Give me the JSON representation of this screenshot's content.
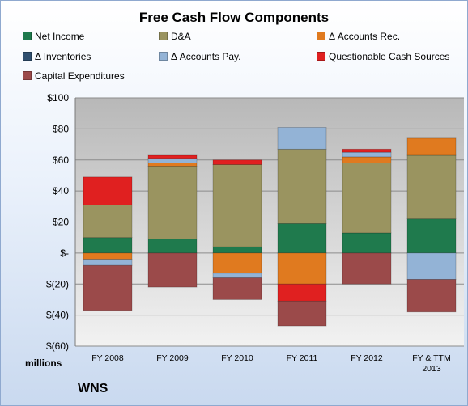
{
  "chart_data": {
    "type": "bar",
    "stacked": true,
    "title": "Free Cash Flow Components",
    "unit_label": "millions",
    "company": "WNS",
    "categories": [
      "FY 2008",
      "FY 2009",
      "FY 2010",
      "FY 2011",
      "FY 2012",
      "FY & TTM 2013"
    ],
    "ylim": [
      -60,
      100
    ],
    "y_ticks": [
      100,
      80,
      60,
      40,
      20,
      0,
      -20,
      -40,
      -60
    ],
    "y_tick_labels": [
      "$100",
      "$80",
      "$60",
      "$40",
      "$20",
      "$-",
      "$(20)",
      "$(40)",
      "$(60)"
    ],
    "grid": true,
    "legend_position": "top",
    "series": [
      {
        "name": "Net Income",
        "color": "#1f7a4d",
        "values": [
          10,
          9,
          4,
          19,
          13,
          22
        ]
      },
      {
        "name": "D&A",
        "color": "#9a9460",
        "values": [
          21,
          47,
          53,
          48,
          45,
          41
        ]
      },
      {
        "name": "Δ Accounts Rec.",
        "color": "#e07a1f",
        "values": [
          -4,
          2,
          -13,
          -20,
          4,
          11
        ]
      },
      {
        "name": "Δ Inventories",
        "color": "#2f4f6f",
        "values": [
          0,
          0,
          0,
          0,
          0,
          0
        ]
      },
      {
        "name": "Δ Accounts Pay.",
        "color": "#93b3d6",
        "values": [
          -4,
          3,
          -3,
          14,
          3,
          -17
        ]
      },
      {
        "name": "Questionable Cash Sources",
        "color": "#e02020",
        "values": [
          18,
          2,
          3,
          -11,
          2,
          0
        ]
      },
      {
        "name": "Capital Expenditures",
        "color": "#9b4a4a",
        "values": [
          -29,
          -22,
          -14,
          -16,
          -20,
          -21
        ]
      }
    ]
  }
}
